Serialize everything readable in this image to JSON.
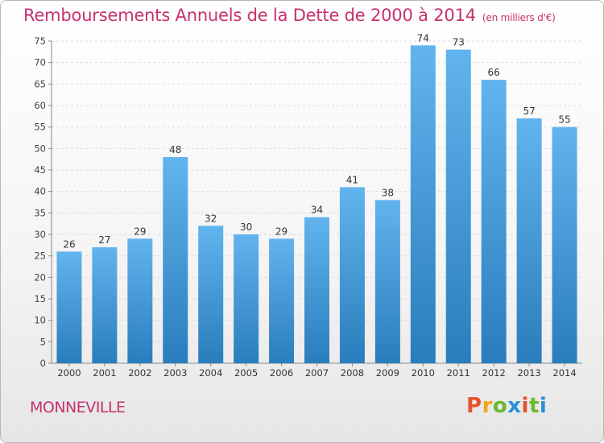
{
  "header": {
    "title": "Remboursements Annuels de la Dette de 2000 à 2014",
    "unit": "(en milliers d'€)"
  },
  "footer": {
    "commune": "MONNEVILLE",
    "brand": "Proxiti"
  },
  "colors": {
    "title": "#c8306e",
    "bar_top": "#62b4ee",
    "bar_bottom": "#2a7dbc",
    "brand_letters": [
      "#e8522c",
      "#f2a51a",
      "#6cb82e",
      "#2a8fd6",
      "#e8522c",
      "#6cb82e",
      "#2a8fd6"
    ]
  },
  "chart_data": {
    "type": "bar",
    "categories": [
      "2000",
      "2001",
      "2002",
      "2003",
      "2004",
      "2005",
      "2006",
      "2007",
      "2008",
      "2009",
      "2010",
      "2011",
      "2012",
      "2013",
      "2014"
    ],
    "values": [
      26,
      27,
      29,
      48,
      32,
      30,
      29,
      34,
      41,
      38,
      74,
      73,
      66,
      57,
      55
    ],
    "title": "Remboursements Annuels de la Dette de 2000 à 2014",
    "xlabel": "",
    "ylabel": "",
    "ylim": [
      0,
      75
    ],
    "yticks": [
      0,
      5,
      10,
      15,
      20,
      25,
      30,
      35,
      40,
      45,
      50,
      55,
      60,
      65,
      70,
      75
    ],
    "grid": true,
    "data_labels": true,
    "legend": "none"
  }
}
